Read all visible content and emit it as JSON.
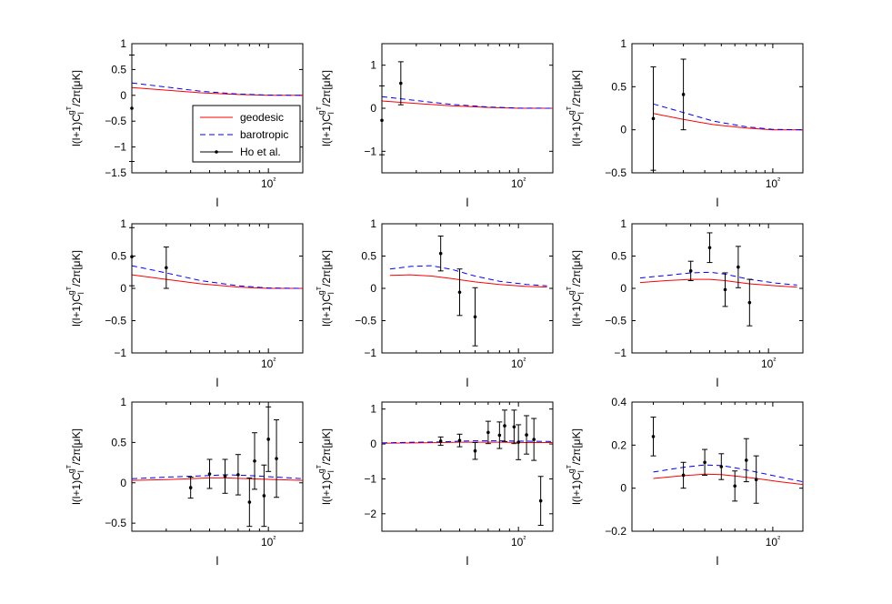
{
  "figure": {
    "title": "",
    "legend_entries": [
      {
        "name": "geodesic",
        "color": "#ff0000",
        "style": "solid"
      },
      {
        "name": "barotropic",
        "color": "#0000ff",
        "style": "dashed"
      },
      {
        "name": "Ho et al.",
        "color": "#000000",
        "style": "errorbar"
      }
    ]
  },
  "chart_data": [
    {
      "type": "line",
      "panel": "r1c1",
      "xlabel": "l",
      "ylabel": "l(l+1)C_l^{gT}/2π[μK]",
      "x_scale": "log",
      "xlim": [
        20,
        150
      ],
      "ylim": [
        -1.5,
        1
      ],
      "yticks": [
        -1.5,
        -1,
        -0.5,
        0,
        0.5,
        1
      ],
      "yticklabels": [
        "−1.5",
        "−1",
        "−0.5",
        "0",
        "0.5",
        "1"
      ],
      "xticks": [
        100
      ],
      "xticklabels": [
        "10²"
      ],
      "legend": "inside, center-right",
      "series": [
        {
          "name": "geodesic",
          "x": [
            20,
            30,
            45,
            70,
            100,
            150
          ],
          "y": [
            0.15,
            0.1,
            0.05,
            0.015,
            0.0,
            0.0
          ]
        },
        {
          "name": "barotropic",
          "x": [
            20,
            30,
            45,
            70,
            100,
            150
          ],
          "y": [
            0.24,
            0.16,
            0.08,
            0.025,
            0.005,
            0.0
          ]
        },
        {
          "name": "Ho et al.",
          "x": [
            20
          ],
          "y": [
            -0.25
          ],
          "yerr": [
            1.03
          ]
        }
      ]
    },
    {
      "type": "line",
      "panel": "r1c2",
      "xlabel": "l",
      "ylabel": "l(l+1)C_l^{gT}/2π[μK]",
      "x_scale": "log",
      "xlim": [
        20,
        150
      ],
      "ylim": [
        -1.5,
        1.5
      ],
      "yticks": [
        -1,
        0,
        1
      ],
      "yticklabels": [
        "−1",
        "0",
        "1"
      ],
      "xticks": [
        100
      ],
      "xticklabels": [
        "10²"
      ],
      "series": [
        {
          "name": "geodesic",
          "x": [
            20,
            30,
            45,
            70,
            100,
            150
          ],
          "y": [
            0.17,
            0.11,
            0.06,
            0.02,
            0.0,
            0.0
          ]
        },
        {
          "name": "barotropic",
          "x": [
            20,
            30,
            45,
            70,
            100,
            150
          ],
          "y": [
            0.27,
            0.18,
            0.09,
            0.03,
            0.005,
            0.0
          ]
        },
        {
          "name": "Ho et al.",
          "x": [
            20,
            25
          ],
          "y": [
            -0.28,
            0.58
          ],
          "yerr": [
            0.8,
            0.5
          ]
        }
      ]
    },
    {
      "type": "line",
      "panel": "r1c3",
      "xlabel": "l",
      "ylabel": "l(l+1)C_l^{gT}/2π[μK]",
      "x_scale": "log",
      "xlim": [
        15,
        150
      ],
      "ylim": [
        -0.5,
        1
      ],
      "yticks": [
        -0.5,
        0,
        0.5,
        1
      ],
      "yticklabels": [
        "−0.5",
        "0",
        "0.5",
        "1"
      ],
      "xticks": [
        100
      ],
      "xticklabels": [
        "10²"
      ],
      "series": [
        {
          "name": "geodesic",
          "x": [
            20,
            30,
            45,
            70,
            100,
            150
          ],
          "y": [
            0.19,
            0.12,
            0.06,
            0.02,
            0.0,
            0.0
          ]
        },
        {
          "name": "barotropic",
          "x": [
            20,
            30,
            45,
            70,
            100,
            150
          ],
          "y": [
            0.3,
            0.2,
            0.1,
            0.035,
            0.005,
            0.0
          ]
        },
        {
          "name": "Ho et al.",
          "x": [
            20,
            30
          ],
          "y": [
            0.13,
            0.41
          ],
          "yerr": [
            0.6,
            0.41
          ]
        }
      ]
    },
    {
      "type": "line",
      "panel": "r2c1",
      "xlabel": "l",
      "ylabel": "l(l+1)C_l^{gT}/2π[μK]",
      "x_scale": "log",
      "xlim": [
        20,
        150
      ],
      "ylim": [
        -1,
        1
      ],
      "yticks": [
        -1,
        -0.5,
        0,
        0.5,
        1
      ],
      "yticklabels": [
        "−1",
        "−0.5",
        "0",
        "0.5",
        "1"
      ],
      "xticks": [
        100
      ],
      "xticklabels": [
        "10²"
      ],
      "series": [
        {
          "name": "geodesic",
          "x": [
            20,
            30,
            45,
            70,
            100,
            150
          ],
          "y": [
            0.21,
            0.14,
            0.07,
            0.02,
            0.0,
            0.0
          ]
        },
        {
          "name": "barotropic",
          "x": [
            20,
            30,
            45,
            70,
            100,
            150
          ],
          "y": [
            0.35,
            0.24,
            0.12,
            0.04,
            0.005,
            0.0
          ]
        },
        {
          "name": "Ho et al.",
          "x": [
            20,
            30
          ],
          "y": [
            0.49,
            0.32
          ],
          "yerr": [
            0.45,
            0.32
          ]
        }
      ]
    },
    {
      "type": "line",
      "panel": "r2c2",
      "xlabel": "l",
      "ylabel": "l(l+1)C_l^{gT}/2π[μK]",
      "x_scale": "log",
      "xlim": [
        20,
        150
      ],
      "ylim": [
        -1,
        1
      ],
      "yticks": [
        -1,
        -0.5,
        0,
        0.5,
        1
      ],
      "yticklabels": [
        "−1",
        "−0.5",
        "0",
        "0.5",
        "1"
      ],
      "xticks": [
        100
      ],
      "xticklabels": [
        "10²"
      ],
      "series": [
        {
          "name": "geodesic",
          "x": [
            22,
            28,
            36,
            46,
            60,
            80,
            110,
            140
          ],
          "y": [
            0.2,
            0.21,
            0.19,
            0.15,
            0.1,
            0.06,
            0.03,
            0.02
          ]
        },
        {
          "name": "barotropic",
          "x": [
            22,
            28,
            36,
            46,
            60,
            80,
            110,
            140
          ],
          "y": [
            0.3,
            0.34,
            0.35,
            0.29,
            0.19,
            0.11,
            0.06,
            0.04
          ]
        },
        {
          "name": "Ho et al.",
          "x": [
            40,
            50,
            60
          ],
          "y": [
            0.54,
            -0.06,
            -0.44
          ],
          "yerr": [
            0.27,
            0.36,
            0.45
          ]
        }
      ]
    },
    {
      "type": "line",
      "panel": "r2c3",
      "xlabel": "l",
      "ylabel": "l(l+1)C_l^{gT}/2π[μK]",
      "x_scale": "log",
      "xlim": [
        20,
        150
      ],
      "ylim": [
        -1,
        1
      ],
      "yticks": [
        -1,
        -0.5,
        0,
        0.5,
        1
      ],
      "yticklabels": [
        "−1",
        "−0.5",
        "0",
        "0.5",
        "1"
      ],
      "xticks": [
        100
      ],
      "xticklabels": [
        "10²"
      ],
      "series": [
        {
          "name": "geodesic",
          "x": [
            22,
            30,
            40,
            50,
            60,
            80,
            110,
            140
          ],
          "y": [
            0.09,
            0.12,
            0.14,
            0.14,
            0.12,
            0.07,
            0.04,
            0.02
          ]
        },
        {
          "name": "barotropic",
          "x": [
            22,
            30,
            40,
            50,
            60,
            80,
            110,
            140
          ],
          "y": [
            0.16,
            0.2,
            0.24,
            0.25,
            0.22,
            0.14,
            0.08,
            0.05
          ]
        },
        {
          "name": "Ho et al.",
          "x": [
            40,
            50,
            60,
            70,
            80
          ],
          "y": [
            0.27,
            0.63,
            -0.02,
            0.33,
            -0.22
          ],
          "yerr": [
            0.15,
            0.23,
            0.26,
            0.32,
            0.36
          ]
        }
      ]
    },
    {
      "type": "line",
      "panel": "r3c1",
      "xlabel": "l",
      "ylabel": "l(l+1)C_l^{gT}/2π[μK]",
      "x_scale": "log",
      "xlim": [
        20,
        150
      ],
      "ylim": [
        -0.6,
        1
      ],
      "yticks": [
        -0.5,
        0,
        0.5,
        1
      ],
      "yticklabels": [
        "−0.5",
        "0",
        "0.5",
        "1"
      ],
      "xticks": [
        100
      ],
      "xticklabels": [
        "10²"
      ],
      "series": [
        {
          "name": "geodesic",
          "x": [
            20,
            30,
            40,
            50,
            60,
            80,
            110,
            150
          ],
          "y": [
            0.03,
            0.04,
            0.05,
            0.06,
            0.06,
            0.05,
            0.04,
            0.03
          ]
        },
        {
          "name": "barotropic",
          "x": [
            20,
            30,
            40,
            50,
            60,
            80,
            110,
            150
          ],
          "y": [
            0.05,
            0.07,
            0.08,
            0.09,
            0.1,
            0.09,
            0.07,
            0.05
          ]
        },
        {
          "name": "Ho et al.",
          "x": [
            40,
            50,
            60,
            70,
            80,
            85,
            95,
            100,
            110
          ],
          "y": [
            -0.06,
            0.11,
            0.08,
            0.1,
            -0.24,
            0.27,
            -0.16,
            0.54,
            0.3
          ],
          "yerr": [
            0.13,
            0.18,
            0.21,
            0.25,
            0.3,
            0.35,
            0.38,
            0.4,
            0.48
          ]
        }
      ]
    },
    {
      "type": "line",
      "panel": "r3c2",
      "xlabel": "l",
      "ylabel": "l(l+1)C_l^{gT}/2π[μK]",
      "x_scale": "log",
      "xlim": [
        20,
        150
      ],
      "ylim": [
        -2.5,
        1.2
      ],
      "yticks": [
        -2,
        -1,
        0,
        1
      ],
      "yticklabels": [
        "−2",
        "−1",
        "0",
        "1"
      ],
      "xticks": [
        100
      ],
      "xticklabels": [
        "10²"
      ],
      "series": [
        {
          "name": "geodesic",
          "x": [
            20,
            30,
            40,
            50,
            60,
            80,
            110,
            150
          ],
          "y": [
            0.02,
            0.03,
            0.04,
            0.05,
            0.05,
            0.05,
            0.04,
            0.04
          ]
        },
        {
          "name": "barotropic",
          "x": [
            20,
            30,
            40,
            50,
            60,
            80,
            110,
            150
          ],
          "y": [
            0.03,
            0.05,
            0.06,
            0.08,
            0.09,
            0.09,
            0.08,
            0.07
          ]
        },
        {
          "name": "Ho et al.",
          "x": [
            40,
            50,
            60,
            70,
            80,
            85,
            95,
            100,
            110,
            120,
            130
          ],
          "y": [
            0.08,
            0.1,
            -0.2,
            0.33,
            0.25,
            0.52,
            0.49,
            0.05,
            0.26,
            0.13,
            -1.63
          ],
          "yerr": [
            0.12,
            0.18,
            0.24,
            0.32,
            0.38,
            0.45,
            0.48,
            0.5,
            0.55,
            0.6,
            0.7
          ]
        }
      ]
    },
    {
      "type": "line",
      "panel": "r3c3",
      "xlabel": "l",
      "ylabel": "l(l+1)C_l^{gT}/2π[μK]",
      "x_scale": "log",
      "xlim": [
        15,
        150
      ],
      "ylim": [
        -0.2,
        0.4
      ],
      "yticks": [
        -0.2,
        0,
        0.2,
        0.4
      ],
      "yticklabels": [
        "−0.2",
        "0",
        "0.2",
        "0.4"
      ],
      "xticks": [
        100
      ],
      "xticklabels": [
        "10²"
      ],
      "series": [
        {
          "name": "geodesic",
          "x": [
            20,
            30,
            40,
            50,
            60,
            80,
            110,
            150
          ],
          "y": [
            0.045,
            0.058,
            0.065,
            0.063,
            0.057,
            0.045,
            0.03,
            0.017
          ]
        },
        {
          "name": "barotropic",
          "x": [
            20,
            30,
            40,
            50,
            60,
            80,
            110,
            150
          ],
          "y": [
            0.075,
            0.097,
            0.108,
            0.105,
            0.095,
            0.075,
            0.052,
            0.03
          ]
        },
        {
          "name": "Ho et al.",
          "x": [
            20,
            30,
            40,
            50,
            60,
            70,
            80
          ],
          "y": [
            0.24,
            0.06,
            0.12,
            0.1,
            0.01,
            0.13,
            0.04
          ],
          "yerr": [
            0.09,
            0.06,
            0.06,
            0.06,
            0.07,
            0.1,
            0.11
          ]
        }
      ]
    }
  ]
}
